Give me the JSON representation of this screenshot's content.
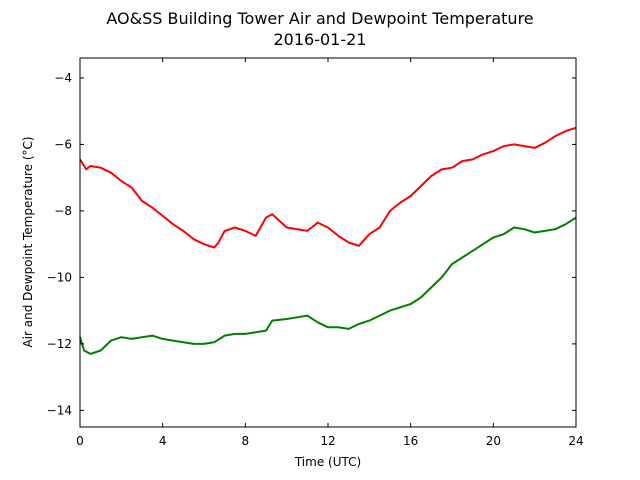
{
  "chart_data": {
    "type": "line",
    "title": "AO&SS Building Tower Air and Dewpoint Temperature",
    "subtitle": "2016-01-21",
    "xlabel": "Time (UTC)",
    "ylabel": "Air and Dewpoint Temperature (°C)",
    "xlim": [
      0,
      24
    ],
    "ylim": [
      -14.5,
      -3.4
    ],
    "xticks": [
      0,
      4,
      8,
      12,
      16,
      20,
      24
    ],
    "yticks": [
      -14,
      -12,
      -10,
      -8,
      -6,
      -4
    ],
    "yticklabels": [
      "−14",
      "−12",
      "−10",
      "−8",
      "−6",
      "−4"
    ],
    "grid": false,
    "series": [
      {
        "color": "#ff0000",
        "x": [
          0,
          0.3,
          0.5,
          1.0,
          1.5,
          2.0,
          2.5,
          3.0,
          3.5,
          4.0,
          4.5,
          5.0,
          5.5,
          6.0,
          6.5,
          6.7,
          7.0,
          7.5,
          8.0,
          8.5,
          9.0,
          9.3,
          10.0,
          11.0,
          11.5,
          12.0,
          12.5,
          13.0,
          13.5,
          14.0,
          14.5,
          15.0,
          15.5,
          16.0,
          16.5,
          17.0,
          17.5,
          18.0,
          18.5,
          19.0,
          19.5,
          20.0,
          20.5,
          21.0,
          21.5,
          22.0,
          22.5,
          23.0,
          23.5,
          24.0
        ],
        "y": [
          -6.45,
          -6.75,
          -6.65,
          -6.7,
          -6.85,
          -7.1,
          -7.3,
          -7.7,
          -7.9,
          -8.15,
          -8.4,
          -8.6,
          -8.85,
          -9.0,
          -9.1,
          -8.95,
          -8.6,
          -8.5,
          -8.6,
          -8.75,
          -8.2,
          -8.1,
          -8.5,
          -8.6,
          -8.35,
          -8.5,
          -8.75,
          -8.95,
          -9.05,
          -8.7,
          -8.5,
          -8.0,
          -7.75,
          -7.55,
          -7.25,
          -6.95,
          -6.75,
          -6.7,
          -6.5,
          -6.45,
          -6.3,
          -6.2,
          -6.05,
          -6.0,
          -6.05,
          -6.1,
          -5.95,
          -5.75,
          -5.6,
          -5.5
        ]
      },
      {
        "color": "#008000",
        "x": [
          0,
          0.2,
          0.5,
          1.0,
          1.5,
          2.0,
          2.5,
          3.0,
          3.5,
          4.0,
          4.5,
          5.0,
          5.5,
          6.0,
          6.5,
          7.0,
          7.5,
          8.0,
          8.5,
          9.0,
          9.3,
          10.0,
          10.5,
          11.0,
          11.5,
          12.0,
          12.5,
          13.0,
          13.5,
          14.0,
          14.5,
          15.0,
          15.5,
          16.0,
          16.5,
          17.0,
          17.5,
          18.0,
          18.5,
          19.0,
          19.5,
          20.0,
          20.5,
          21.0,
          21.5,
          22.0,
          22.5,
          23.0,
          23.5,
          24.0
        ],
        "y": [
          -11.8,
          -12.2,
          -12.3,
          -12.2,
          -11.9,
          -11.8,
          -11.85,
          -11.8,
          -11.75,
          -11.85,
          -11.9,
          -11.95,
          -12.0,
          -12.0,
          -11.95,
          -11.75,
          -11.7,
          -11.7,
          -11.65,
          -11.6,
          -11.3,
          -11.25,
          -11.2,
          -11.15,
          -11.35,
          -11.5,
          -11.5,
          -11.55,
          -11.4,
          -11.3,
          -11.15,
          -11.0,
          -10.9,
          -10.8,
          -10.6,
          -10.3,
          -10.0,
          -9.6,
          -9.4,
          -9.2,
          -9.0,
          -8.8,
          -8.7,
          -8.5,
          -8.55,
          -8.65,
          -8.6,
          -8.55,
          -8.4,
          -8.2
        ]
      }
    ]
  }
}
